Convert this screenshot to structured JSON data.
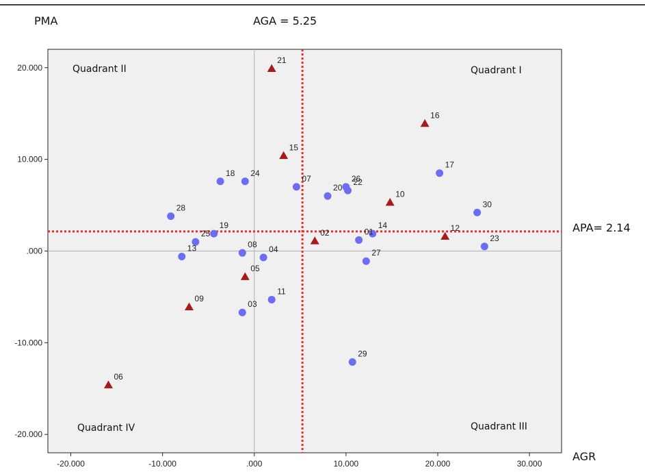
{
  "chart_data": {
    "type": "scatter",
    "title": "",
    "ylabel": "PMA",
    "xlabel": "AGR",
    "xlim": [
      -22.5,
      33.5
    ],
    "ylim": [
      -22.0,
      22.0
    ],
    "x_ticks": [
      -20,
      -10,
      0,
      10,
      20,
      30
    ],
    "y_ticks": [
      20,
      10,
      0,
      -10,
      -20
    ],
    "x_tick_labels": [
      "-20.000",
      "-10.000",
      ".000",
      "10.000",
      "20.000",
      "30.000"
    ],
    "y_tick_labels": [
      "20.000",
      "10.000",
      ".000",
      "-10.000",
      "-20.000"
    ],
    "grid": false,
    "reference_lines": {
      "zero_x": 0,
      "zero_y": 0,
      "aga": {
        "label": "AGA = 5.25",
        "value": 5.25
      },
      "apa": {
        "label": "APA= 2.14",
        "value": 2.14
      }
    },
    "quadrants": {
      "q1": "Quadrant I",
      "q2": "Quadrant II",
      "q3": "Quadrant III",
      "q4": "Quadrant IV"
    },
    "points": [
      {
        "id": "21",
        "x": 1.9,
        "y": 19.9,
        "marker": "triangle"
      },
      {
        "id": "16",
        "x": 18.6,
        "y": 13.9,
        "marker": "triangle"
      },
      {
        "id": "15",
        "x": 3.2,
        "y": 10.4,
        "marker": "triangle"
      },
      {
        "id": "10",
        "x": 14.8,
        "y": 5.3,
        "marker": "triangle"
      },
      {
        "id": "12",
        "x": 20.8,
        "y": 1.6,
        "marker": "triangle"
      },
      {
        "id": "02",
        "x": 6.6,
        "y": 1.1,
        "marker": "triangle"
      },
      {
        "id": "05",
        "x": -1.0,
        "y": -2.8,
        "marker": "triangle"
      },
      {
        "id": "09",
        "x": -7.1,
        "y": -6.1,
        "marker": "triangle"
      },
      {
        "id": "06",
        "x": -15.9,
        "y": -14.6,
        "marker": "triangle"
      },
      {
        "id": "17",
        "x": 20.2,
        "y": 8.5,
        "marker": "circle"
      },
      {
        "id": "30",
        "x": 24.3,
        "y": 4.2,
        "marker": "circle"
      },
      {
        "id": "23",
        "x": 25.1,
        "y": 0.5,
        "marker": "circle"
      },
      {
        "id": "26",
        "x": 10.0,
        "y": 7.0,
        "marker": "circle"
      },
      {
        "id": "22",
        "x": 10.2,
        "y": 6.6,
        "marker": "circle"
      },
      {
        "id": "20",
        "x": 8.0,
        "y": 6.0,
        "marker": "circle"
      },
      {
        "id": "07",
        "x": 4.6,
        "y": 7.0,
        "marker": "circle"
      },
      {
        "id": "14",
        "x": 12.9,
        "y": 1.9,
        "marker": "circle"
      },
      {
        "id": "01",
        "x": 11.4,
        "y": 1.2,
        "marker": "circle"
      },
      {
        "id": "27",
        "x": 12.2,
        "y": -1.1,
        "marker": "circle"
      },
      {
        "id": "11",
        "x": 1.9,
        "y": -5.3,
        "marker": "circle"
      },
      {
        "id": "03",
        "x": -1.3,
        "y": -6.7,
        "marker": "circle"
      },
      {
        "id": "29",
        "x": 10.7,
        "y": -12.1,
        "marker": "circle"
      },
      {
        "id": "04",
        "x": 1.0,
        "y": -0.7,
        "marker": "circle"
      },
      {
        "id": "08",
        "x": -1.3,
        "y": -0.2,
        "marker": "circle"
      },
      {
        "id": "18",
        "x": -3.7,
        "y": 7.6,
        "marker": "circle"
      },
      {
        "id": "24",
        "x": -1.0,
        "y": 7.6,
        "marker": "circle"
      },
      {
        "id": "28",
        "x": -9.1,
        "y": 3.8,
        "marker": "circle"
      },
      {
        "id": "19",
        "x": -4.4,
        "y": 1.9,
        "marker": "circle"
      },
      {
        "id": "25",
        "x": -6.4,
        "y": 1.0,
        "marker": "circle"
      },
      {
        "id": "13",
        "x": -7.9,
        "y": -0.6,
        "marker": "circle"
      }
    ],
    "colors": {
      "circle": "#6d6df2",
      "triangle": "#a61c1c",
      "refline": "#ee2a2a",
      "plot_bg": "#f0f0f0",
      "zero_line": "#b0b0b0"
    }
  }
}
